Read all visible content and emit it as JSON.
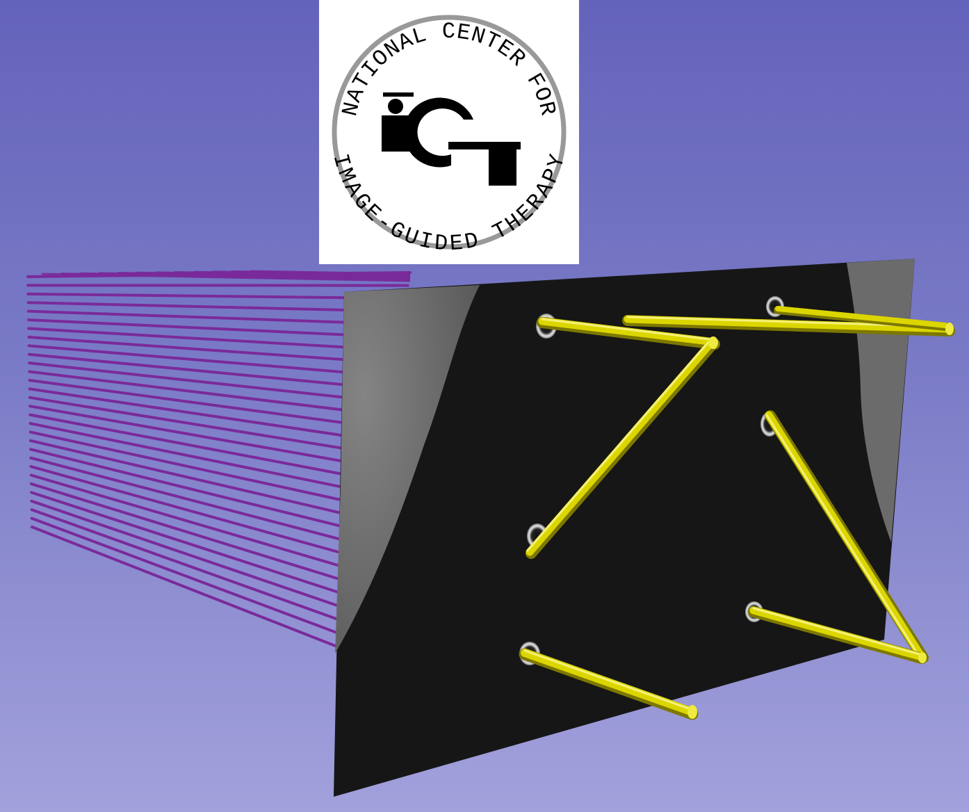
{
  "scene": {
    "background_top": "#6463bb",
    "background_bottom": "#a3a1dc",
    "rod_color": "#7a2a9a",
    "needle_color": "#d8d200",
    "slice_color": "#151515"
  },
  "logo": {
    "top_arc_text": "NATIONAL CENTER FOR",
    "bottom_arc_text": "IMAGE-GUIDED THERAPY",
    "ring_color": "#999999",
    "mark_color": "#000000"
  }
}
